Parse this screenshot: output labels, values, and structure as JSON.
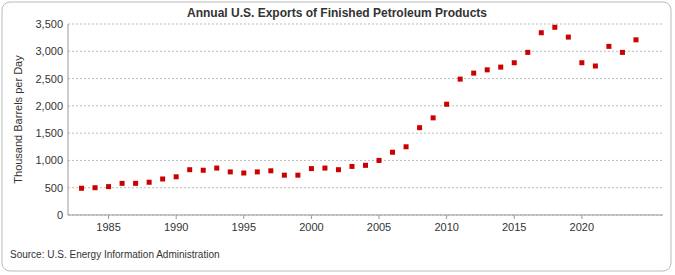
{
  "chart_data": {
    "type": "scatter",
    "title": "Annual U.S. Exports of Finished Petroleum Products",
    "y_label": "Thousand Barrels per Day",
    "source": "Source: U.S. Energy Information Administration",
    "x": [
      1983,
      1984,
      1985,
      1986,
      1987,
      1988,
      1989,
      1990,
      1991,
      1992,
      1993,
      1994,
      1995,
      1996,
      1997,
      1998,
      1999,
      2000,
      2001,
      2002,
      2003,
      2004,
      2005,
      2006,
      2007,
      2008,
      2009,
      2010,
      2011,
      2012,
      2013,
      2014,
      2015,
      2016,
      2017,
      2018,
      2019,
      2020,
      2021,
      2022,
      2023,
      2024
    ],
    "values": [
      490,
      500,
      520,
      580,
      580,
      600,
      660,
      700,
      830,
      820,
      860,
      790,
      770,
      790,
      810,
      730,
      730,
      850,
      860,
      830,
      890,
      910,
      1000,
      1150,
      1250,
      1600,
      1780,
      2030,
      2490,
      2600,
      2660,
      2710,
      2790,
      2980,
      3340,
      3440,
      3260,
      2790,
      2730,
      3090,
      2980,
      3210
    ],
    "color": "#cc0000",
    "marker": "square",
    "xlim": [
      1982,
      2026
    ],
    "ylim": [
      0,
      3500
    ],
    "xticks": [
      1985,
      1990,
      1995,
      2000,
      2005,
      2010,
      2015,
      2020
    ],
    "yticks": [
      0,
      500,
      {
        "value": 1000,
        "label": "1,000"
      },
      {
        "value": 1500,
        "label": "1,500"
      },
      {
        "value": 2000,
        "label": "2,000"
      },
      {
        "value": 2500,
        "label": "2,500"
      },
      {
        "value": 3000,
        "label": "3,000"
      },
      {
        "value": 3500,
        "label": "3,500"
      }
    ],
    "grid": true
  }
}
